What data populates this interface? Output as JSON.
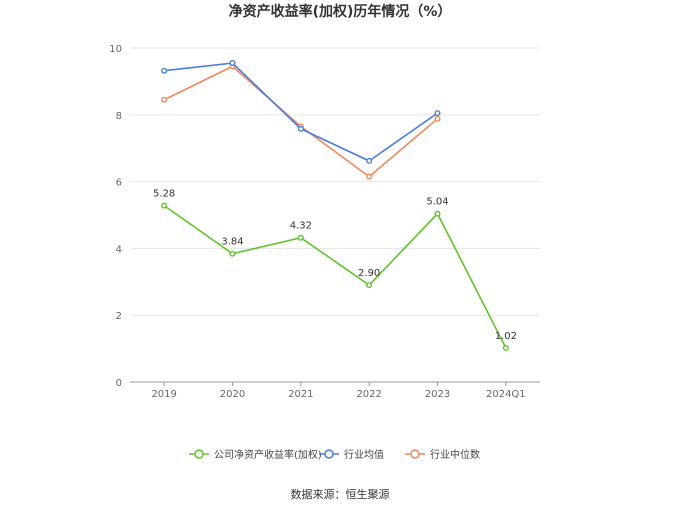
{
  "chart_data": {
    "type": "line",
    "title": "净资产收益率(加权)历年情况（%）",
    "categories": [
      "2019",
      "2020",
      "2021",
      "2022",
      "2023",
      "2024Q1"
    ],
    "ylim": [
      0,
      10
    ],
    "yticks": [
      0,
      2,
      4,
      6,
      8,
      10
    ],
    "grid": true,
    "legend_position": "bottom-center",
    "series": [
      {
        "name": "公司净资产收益率(加权)",
        "color": "#5dc427",
        "values": [
          5.28,
          3.84,
          4.32,
          2.9,
          5.04,
          1.02
        ],
        "labels": [
          "5.28",
          "3.84",
          "4.32",
          "2.90",
          "5.04",
          "1.02"
        ]
      },
      {
        "name": "行业均值",
        "color": "#4a7ddc",
        "values": [
          9.32,
          9.55,
          7.58,
          6.62,
          8.05,
          null
        ]
      },
      {
        "name": "行业中位数",
        "color": "#f0875c",
        "values": [
          8.45,
          9.45,
          7.65,
          6.15,
          7.88,
          null
        ]
      }
    ]
  },
  "source": "数据来源：恒生聚源"
}
